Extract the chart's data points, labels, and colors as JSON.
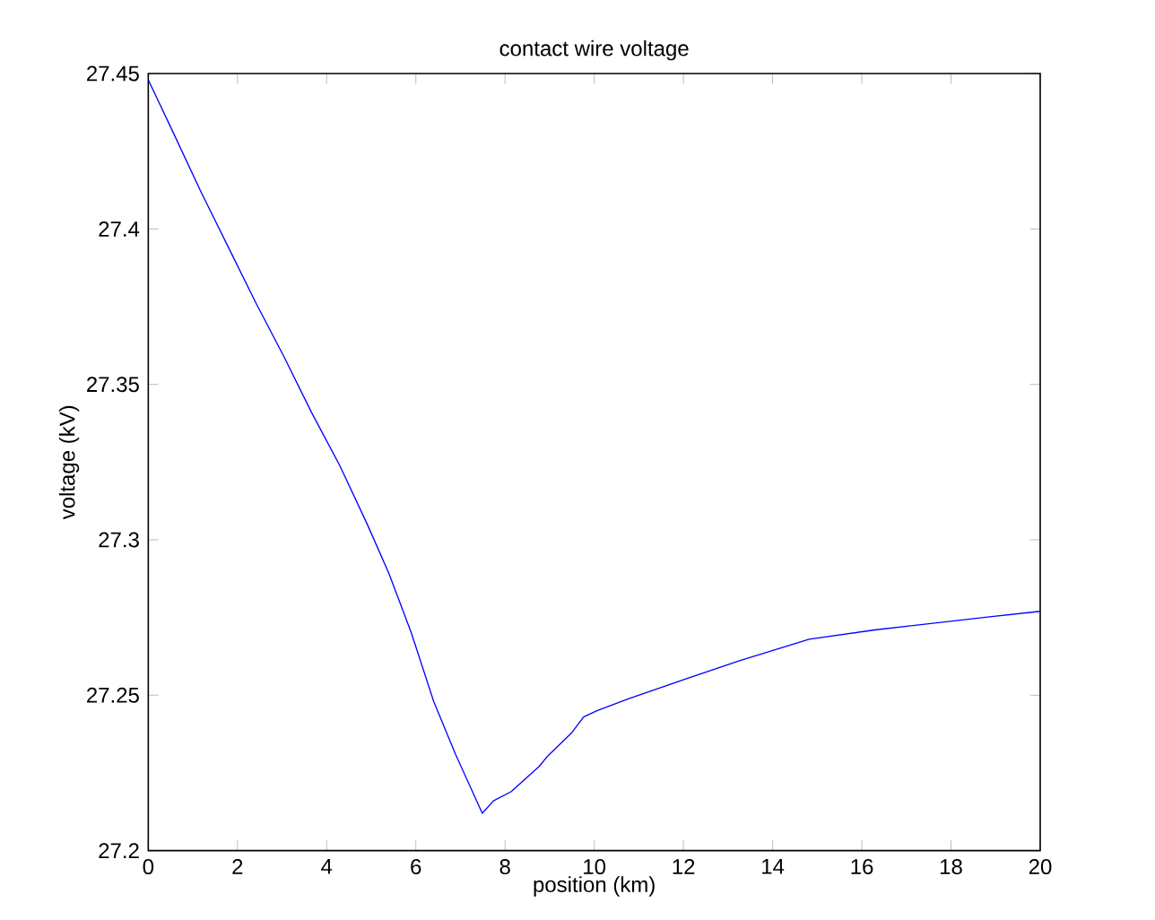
{
  "chart_data": {
    "type": "line",
    "title": "contact wire voltage",
    "xlabel": "position (km)",
    "ylabel": "voltage (kV)",
    "xlim": [
      0,
      20
    ],
    "ylim": [
      27.2,
      27.45
    ],
    "xticks": [
      0,
      2,
      4,
      6,
      8,
      10,
      12,
      14,
      16,
      18,
      20
    ],
    "yticks": [
      27.2,
      27.25,
      27.3,
      27.35,
      27.4,
      27.45
    ],
    "marker": "none",
    "line_style": "solid",
    "series": [
      {
        "color": "#0000ff",
        "x": [
          0,
          0.56,
          1.18,
          1.8,
          2.42,
          3.04,
          3.66,
          4.29,
          4.91,
          5.4,
          5.9,
          6.4,
          6.89,
          7.49,
          7.74,
          8.14,
          8.76,
          8.96,
          9.5,
          9.76,
          10.06,
          10.79,
          12.01,
          13.24,
          14.82,
          16.29,
          17.51,
          18.73,
          20
        ],
        "values": [
          27.448,
          27.431,
          27.412,
          27.394,
          27.376,
          27.359,
          27.341,
          27.324,
          27.305,
          27.289,
          27.27,
          27.248,
          27.231,
          27.212,
          27.216,
          27.219,
          27.227,
          27.2305,
          27.238,
          27.243,
          27.245,
          27.249,
          27.255,
          27.261,
          27.268,
          27.271,
          27.273,
          27.275,
          27.277
        ]
      }
    ]
  }
}
